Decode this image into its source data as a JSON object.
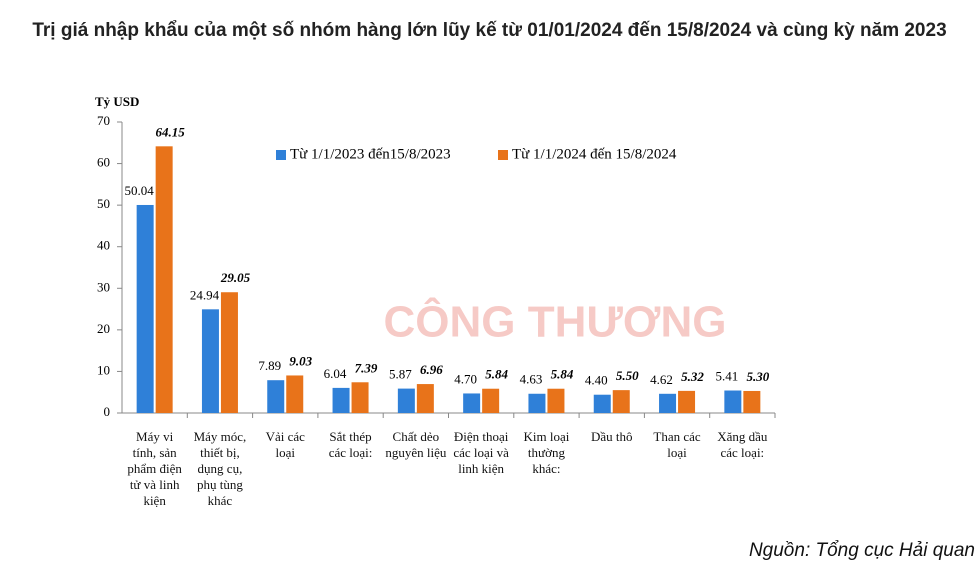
{
  "chart_data": {
    "type": "bar",
    "title": "Trị giá nhập khẩu của một số nhóm hàng lớn lũy kế từ 01/01/2024 đến 15/8/2024 và cùng kỳ năm 2023",
    "y_label": "Tỷ USD",
    "source": "Nguồn: Tổng cục Hải quan",
    "watermark": "CÔNG THƯƠNG",
    "categories": [
      "Máy vi tính, sản phẩm điện tử và linh kiện",
      "Máy móc, thiết bị, dụng cụ, phụ tùng khác",
      "Vải các loại",
      "Sắt thép các loại:",
      "Chất dẻo nguyên liệu",
      "Điện thoại các loại và linh kiện",
      "Kim loại thường khác:",
      "Dầu thô",
      "Than các loại",
      "Xăng dầu các loại:"
    ],
    "series": [
      {
        "name": "Từ 1/1/2023 đến15/8/2023",
        "color": "#2f80d8",
        "values": [
          50.04,
          24.94,
          7.89,
          6.04,
          5.87,
          4.7,
          4.63,
          4.4,
          4.62,
          5.41
        ],
        "value_labels": [
          "50.04",
          "24.94",
          "7.89",
          "6.04",
          "5.87",
          "4.70",
          "4.63",
          "4.40",
          "4.62",
          "5.41"
        ]
      },
      {
        "name": "Từ 1/1/2024 đến 15/8/2024",
        "color": "#e8731a",
        "values": [
          64.15,
          29.05,
          9.03,
          7.39,
          6.96,
          5.84,
          5.84,
          5.5,
          5.32,
          5.3
        ],
        "value_labels": [
          "64.15",
          "29.05",
          "9.03",
          "7.39",
          "6.96",
          "5.84",
          "5.84",
          "5.50",
          "5.32",
          "5.30"
        ]
      }
    ],
    "ylim": [
      0,
      70
    ],
    "yticks": [
      0,
      10,
      20,
      30,
      40,
      50,
      60,
      70
    ],
    "grid": false
  }
}
